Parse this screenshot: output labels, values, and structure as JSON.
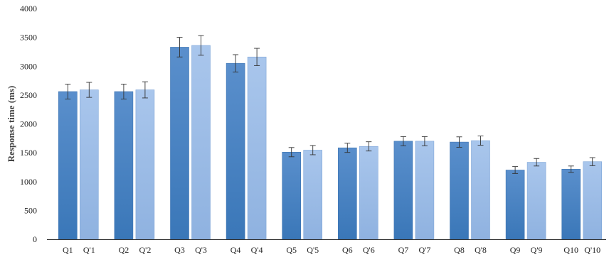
{
  "chart_data": {
    "type": "bar",
    "title": "",
    "xlabel": "",
    "ylabel": "Response time (ms)",
    "ylim": [
      0,
      4000
    ],
    "yticks": [
      0,
      500,
      1000,
      1500,
      2000,
      2500,
      3000,
      3500,
      4000
    ],
    "grid": false,
    "legend": "none",
    "colors": {
      "dark": "#4a84c4",
      "dark_edge": "#3d74b2",
      "light": "#9dbde6",
      "light_edge": "#7fa6d8"
    },
    "categories": [
      "Q1",
      "Q'1",
      "Q2",
      "Q'2",
      "Q3",
      "Q'3",
      "Q4",
      "Q'4",
      "Q5",
      "Q'5",
      "Q6",
      "Q'6",
      "Q7",
      "Q'7",
      "Q8",
      "Q'8",
      "Q9",
      "Q'9",
      "Q10",
      "Q'10"
    ],
    "values": [
      2560,
      2590,
      2560,
      2590,
      3330,
      3360,
      3050,
      3160,
      1510,
      1545,
      1585,
      1610,
      1700,
      1700,
      1685,
      1710,
      1200,
      1335,
      1215,
      1345
    ],
    "errors": [
      130,
      130,
      130,
      140,
      170,
      170,
      150,
      150,
      80,
      80,
      80,
      80,
      80,
      80,
      90,
      80,
      60,
      65,
      55,
      70
    ],
    "bar_shade": [
      "dark",
      "light",
      "dark",
      "light",
      "dark",
      "light",
      "dark",
      "light",
      "dark",
      "light",
      "dark",
      "light",
      "dark",
      "light",
      "dark",
      "light",
      "dark",
      "light",
      "dark",
      "light"
    ]
  }
}
